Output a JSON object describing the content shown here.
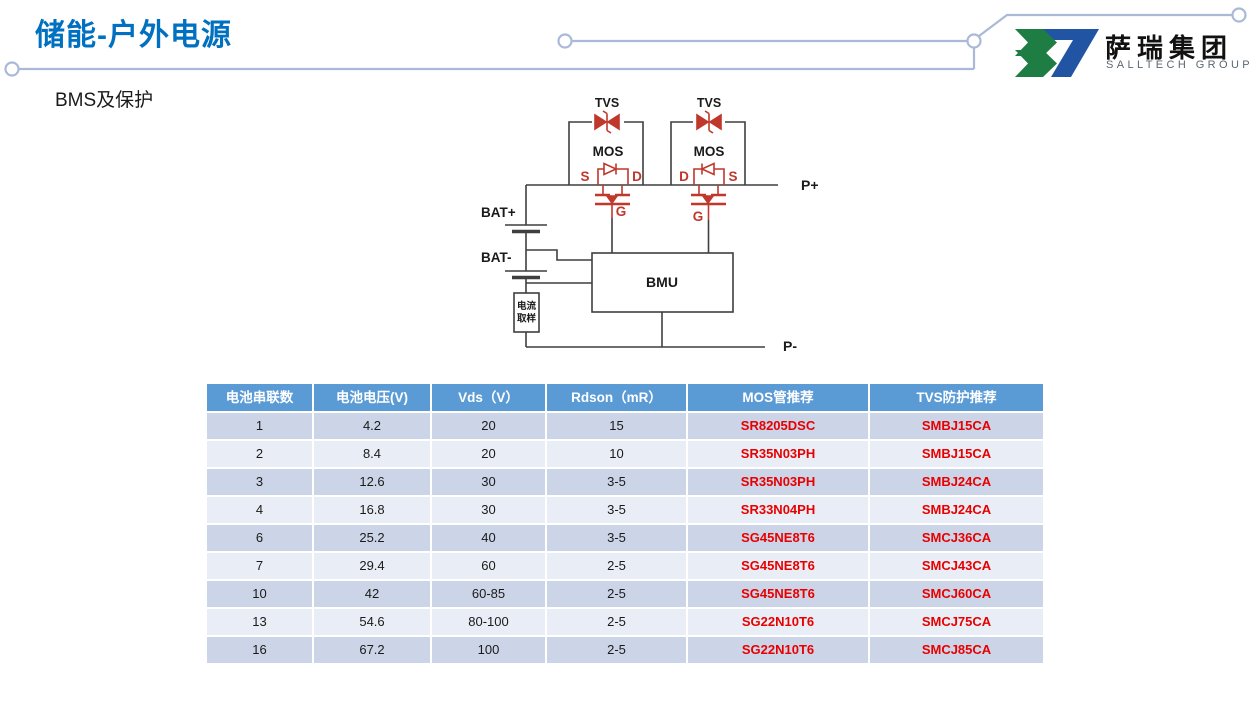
{
  "page": {
    "title": "储能-户外电源",
    "subtitle": "BMS及保护"
  },
  "logo": {
    "name_cn": "萨瑞集团",
    "name_en": "SALLTECH GROUP"
  },
  "diagram": {
    "labels": {
      "tvs": "TVS",
      "mos": "MOS",
      "s": "S",
      "d": "D",
      "g": "G",
      "bat_plus": "BAT+",
      "bat_minus": "BAT-",
      "bmu": "BMU",
      "current_sense_1": "电流",
      "current_sense_2": "取样",
      "p_plus": "P+",
      "p_minus": "P-"
    },
    "colors": {
      "wire": "#3f3f3f",
      "component_red": "#c0372b"
    }
  },
  "table": {
    "headers": [
      "电池串联数",
      "电池电压(V)",
      "Vds（V）",
      "Rdson（mR）",
      "MOS管推荐",
      "TVS防护推荐"
    ],
    "rows": [
      [
        "1",
        "4.2",
        "20",
        "15",
        "SR8205DSC",
        "SMBJ15CA"
      ],
      [
        "2",
        "8.4",
        "20",
        "10",
        "SR35N03PH",
        "SMBJ15CA"
      ],
      [
        "3",
        "12.6",
        "30",
        "3-5",
        "SR35N03PH",
        "SMBJ24CA"
      ],
      [
        "4",
        "16.8",
        "30",
        "3-5",
        "SR33N04PH",
        "SMBJ24CA"
      ],
      [
        "6",
        "25.2",
        "40",
        "3-5",
        "SG45NE8T6",
        "SMCJ36CA"
      ],
      [
        "7",
        "29.4",
        "60",
        "2-5",
        "SG45NE8T6",
        "SMCJ43CA"
      ],
      [
        "10",
        "42",
        "60-85",
        "2-5",
        "SG45NE8T6",
        "SMCJ60CA"
      ],
      [
        "13",
        "54.6",
        "80-100",
        "2-5",
        "SG22N10T6",
        "SMCJ75CA"
      ],
      [
        "16",
        "67.2",
        "100",
        "2-5",
        "SG22N10T6",
        "SMCJ85CA"
      ]
    ],
    "colors": {
      "header_bg": "#5b9bd5",
      "row_odd": "#ccd5e8",
      "row_even": "#e9eef6",
      "red_text": "#e80000"
    }
  },
  "theme": {
    "title_color": "#0070c0",
    "decor_line": "#aab9d8",
    "logo_green": "#1e7d43",
    "logo_blue": "#2155a3"
  }
}
